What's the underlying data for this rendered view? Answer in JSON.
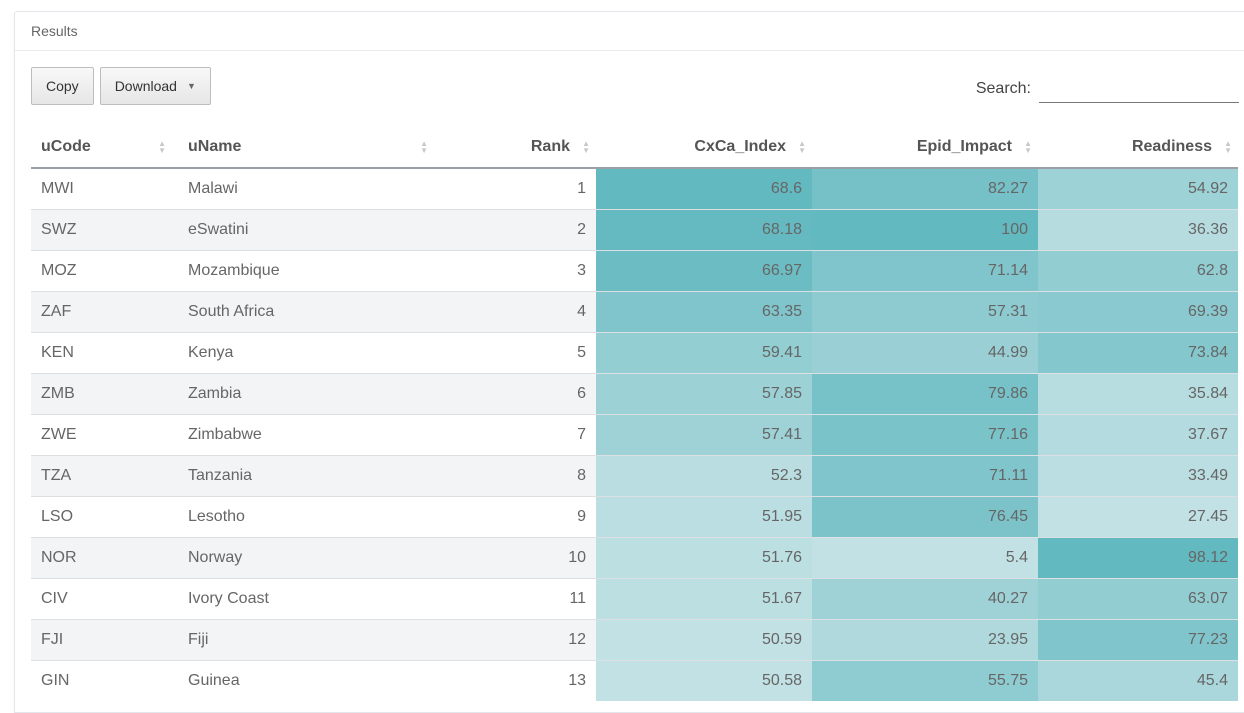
{
  "panel": {
    "title": "Results"
  },
  "toolbar": {
    "copy_label": "Copy",
    "download_label": "Download",
    "download_caret": "▼"
  },
  "search": {
    "label": "Search:",
    "value": ""
  },
  "columns": [
    "uCode",
    "uName",
    "Rank",
    "CxCa_Index",
    "Epid_Impact",
    "Readiness"
  ],
  "rows": [
    [
      "MWI",
      "Malawi",
      "1",
      "68.6",
      "82.27",
      "54.92"
    ],
    [
      "SWZ",
      "eSwatini",
      "2",
      "68.18",
      "100",
      "36.36"
    ],
    [
      "MOZ",
      "Mozambique",
      "3",
      "66.97",
      "71.14",
      "62.8"
    ],
    [
      "ZAF",
      "South Africa",
      "4",
      "63.35",
      "57.31",
      "69.39"
    ],
    [
      "KEN",
      "Kenya",
      "5",
      "59.41",
      "44.99",
      "73.84"
    ],
    [
      "ZMB",
      "Zambia",
      "6",
      "57.85",
      "79.86",
      "35.84"
    ],
    [
      "ZWE",
      "Zimbabwe",
      "7",
      "57.41",
      "77.16",
      "37.67"
    ],
    [
      "TZA",
      "Tanzania",
      "8",
      "52.3",
      "71.11",
      "33.49"
    ],
    [
      "LSO",
      "Lesotho",
      "9",
      "51.95",
      "76.45",
      "27.45"
    ],
    [
      "NOR",
      "Norway",
      "10",
      "51.76",
      "5.4",
      "98.12"
    ],
    [
      "CIV",
      "Ivory Coast",
      "11",
      "51.67",
      "40.27",
      "63.07"
    ],
    [
      "FJI",
      "Fiji",
      "12",
      "50.59",
      "23.95",
      "77.23"
    ],
    [
      "GIN",
      "Guinea",
      "13",
      "50.58",
      "55.75",
      "45.4"
    ]
  ],
  "heat_colors": {
    "low": "#f5f7f8",
    "high": "#63b9c0"
  }
}
